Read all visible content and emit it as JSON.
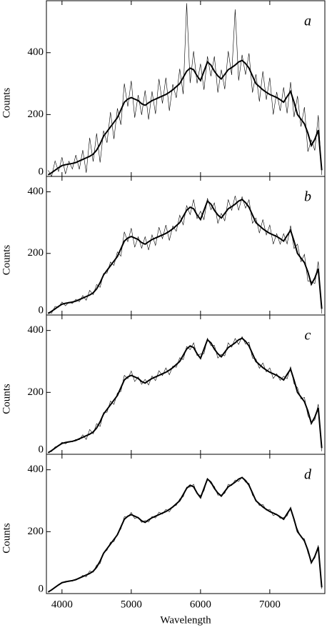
{
  "chart_data": [
    {
      "type": "line",
      "label": "a",
      "ylabel": "Counts",
      "xlim": [
        3775,
        7795
      ],
      "ylim": [
        0,
        568
      ],
      "yticks": [
        0,
        200,
        400
      ],
      "xticks": [
        4000,
        5000,
        6000,
        7000
      ],
      "x": [
        3800,
        3850,
        3900,
        3950,
        4000,
        4050,
        4100,
        4150,
        4200,
        4250,
        4300,
        4350,
        4400,
        4450,
        4500,
        4550,
        4600,
        4650,
        4700,
        4750,
        4800,
        4850,
        4900,
        4950,
        5000,
        5050,
        5100,
        5150,
        5200,
        5250,
        5300,
        5350,
        5400,
        5450,
        5500,
        5550,
        5600,
        5650,
        5700,
        5750,
        5800,
        5850,
        5900,
        5950,
        6000,
        6050,
        6100,
        6150,
        6200,
        6250,
        6300,
        6350,
        6400,
        6450,
        6500,
        6550,
        6600,
        6650,
        6700,
        6750,
        6800,
        6850,
        6900,
        6950,
        7000,
        7050,
        7100,
        7150,
        7200,
        7250,
        7300,
        7350,
        7400,
        7450,
        7500,
        7550,
        7600,
        7650,
        7700,
        7750
      ],
      "series": [
        {
          "color": "#000000",
          "values": [
            20,
            0,
            50,
            16,
            62,
            8,
            49,
            24,
            69,
            23,
            85,
            12,
            125,
            48,
            139,
            45,
            148,
            109,
            208,
            121,
            220,
            167,
            300,
            226,
            309,
            190,
            263,
            199,
            278,
            184,
            275,
            202,
            315,
            236,
            319,
            212,
            298,
            254,
            348,
            266,
            560,
            302,
            405,
            301,
            364,
            280,
            388,
            324,
            388,
            271,
            345,
            282,
            405,
            328,
            540,
            310,
            393,
            329,
            398,
            271,
            330,
            242,
            340,
            248,
            319,
            200,
            273,
            212,
            288,
            204,
            305,
            192,
            260,
            161,
            224,
            80,
            118,
            84,
            198,
            5
          ]
        },
        {
          "color": "#000000",
          "values": [
            5,
            12,
            20,
            28,
            35,
            38,
            40,
            42,
            45,
            50,
            55,
            60,
            65,
            72,
            85,
            105,
            130,
            145,
            160,
            175,
            190,
            215,
            240,
            250,
            255,
            250,
            245,
            235,
            230,
            238,
            245,
            250,
            255,
            260,
            265,
            272,
            280,
            290,
            300,
            320,
            340,
            350,
            345,
            325,
            310,
            340,
            370,
            360,
            340,
            325,
            315,
            330,
            345,
            352,
            360,
            370,
            375,
            365,
            350,
            325,
            300,
            290,
            280,
            272,
            265,
            260,
            255,
            248,
            240,
            258,
            275,
            240,
            200,
            185,
            170,
            140,
            100,
            120,
            150,
            20
          ]
        }
      ]
    },
    {
      "type": "line",
      "label": "b",
      "ylabel": "Counts",
      "xlim": [
        3775,
        7795
      ],
      "ylim": [
        0,
        450
      ],
      "yticks": [
        0,
        200,
        400
      ],
      "xticks": [
        4000,
        5000,
        6000,
        7000
      ],
      "x": [
        3800,
        3850,
        3900,
        3950,
        4000,
        4050,
        4100,
        4150,
        4200,
        4250,
        4300,
        4350,
        4400,
        4450,
        4500,
        4550,
        4600,
        4650,
        4700,
        4750,
        4800,
        4850,
        4900,
        4950,
        5000,
        5050,
        5100,
        5150,
        5200,
        5250,
        5300,
        5350,
        5400,
        5450,
        5500,
        5550,
        5600,
        5650,
        5700,
        5750,
        5800,
        5850,
        5900,
        5950,
        6000,
        6050,
        6100,
        6150,
        6200,
        6250,
        6300,
        6350,
        6400,
        6450,
        6500,
        6550,
        6600,
        6650,
        6700,
        6750,
        6800,
        6850,
        6900,
        6950,
        7000,
        7050,
        7100,
        7150,
        7200,
        7250,
        7300,
        7350,
        7400,
        7450,
        7500,
        7550,
        7600,
        7650,
        7700,
        7750
      ],
      "series": [
        {
          "color": "#000000",
          "values": [
            9,
            6,
            28,
            25,
            42,
            30,
            42,
            37,
            51,
            43,
            63,
            48,
            80,
            66,
            99,
            90,
            135,
            136,
            172,
            161,
            205,
            191,
            270,
            238,
            282,
            220,
            254,
            217,
            254,
            211,
            260,
            226,
            285,
            248,
            292,
            242,
            289,
            272,
            324,
            293,
            355,
            326,
            375,
            313,
            337,
            310,
            379,
            342,
            364,
            298,
            330,
            306,
            375,
            340,
            387,
            340,
            384,
            347,
            374,
            298,
            315,
            266,
            310,
            260,
            292,
            230,
            264,
            230,
            264,
            231,
            290,
            216,
            230,
            173,
            197,
            110,
            109,
            102,
            174,
            5
          ]
        },
        {
          "color": "#000000",
          "values": [
            5,
            12,
            20,
            28,
            35,
            38,
            40,
            42,
            45,
            50,
            55,
            60,
            65,
            72,
            85,
            105,
            130,
            145,
            160,
            175,
            190,
            215,
            240,
            250,
            255,
            250,
            245,
            235,
            230,
            238,
            245,
            250,
            255,
            260,
            265,
            272,
            280,
            290,
            300,
            320,
            340,
            350,
            345,
            325,
            310,
            340,
            370,
            360,
            340,
            325,
            315,
            330,
            345,
            352,
            360,
            370,
            375,
            365,
            350,
            325,
            300,
            290,
            280,
            272,
            265,
            260,
            255,
            248,
            240,
            258,
            275,
            240,
            200,
            185,
            170,
            140,
            100,
            120,
            150,
            20
          ]
        }
      ]
    },
    {
      "type": "line",
      "label": "c",
      "ylabel": "Counts",
      "xlim": [
        3775,
        7795
      ],
      "ylim": [
        0,
        450
      ],
      "yticks": [
        0,
        200,
        400
      ],
      "xticks": [
        4000,
        5000,
        6000,
        7000
      ],
      "x": [
        3800,
        3850,
        3900,
        3950,
        4000,
        4050,
        4100,
        4150,
        4200,
        4250,
        4300,
        4350,
        4400,
        4450,
        4500,
        4550,
        4600,
        4650,
        4700,
        4750,
        4800,
        4850,
        4900,
        4950,
        5000,
        5050,
        5100,
        5150,
        5200,
        5250,
        5300,
        5350,
        5400,
        5450,
        5500,
        5550,
        5600,
        5650,
        5700,
        5750,
        5800,
        5850,
        5900,
        5950,
        6000,
        6050,
        6100,
        6150,
        6200,
        6250,
        6300,
        6350,
        6400,
        6450,
        6500,
        6550,
        6600,
        6650,
        6700,
        6750,
        6800,
        6850,
        6900,
        6950,
        7000,
        7050,
        7100,
        7150,
        7200,
        7250,
        7300,
        7350,
        7400,
        7450,
        7500,
        7550,
        7600,
        7650,
        7700,
        7750
      ],
      "series": [
        {
          "color": "#000000",
          "values": [
            7,
            9,
            24,
            27,
            39,
            34,
            41,
            40,
            48,
            47,
            63,
            48,
            80,
            66,
            99,
            90,
            135,
            136,
            172,
            161,
            198,
            203,
            255,
            244,
            269,
            235,
            250,
            226,
            242,
            224,
            253,
            238,
            270,
            254,
            279,
            257,
            285,
            281,
            312,
            306,
            348,
            338,
            360,
            319,
            324,
            325,
            375,
            351,
            352,
            311,
            323,
            318,
            360,
            346,
            374,
            355,
            380,
            356,
            362,
            311,
            308,
            278,
            295,
            266,
            279,
            245,
            260,
            239,
            252,
            244,
            283,
            228,
            215,
            179,
            184,
            125,
            105,
            111,
            162,
            10
          ]
        },
        {
          "color": "#000000",
          "values": [
            5,
            12,
            20,
            28,
            35,
            38,
            40,
            42,
            45,
            50,
            55,
            60,
            65,
            72,
            85,
            105,
            130,
            145,
            160,
            175,
            190,
            215,
            240,
            250,
            255,
            250,
            245,
            235,
            230,
            238,
            245,
            250,
            255,
            260,
            265,
            272,
            280,
            290,
            300,
            320,
            340,
            350,
            345,
            325,
            310,
            340,
            370,
            360,
            340,
            325,
            315,
            330,
            345,
            352,
            360,
            370,
            375,
            365,
            350,
            325,
            300,
            290,
            280,
            272,
            265,
            260,
            255,
            248,
            240,
            258,
            275,
            240,
            200,
            185,
            170,
            140,
            100,
            120,
            150,
            20
          ]
        }
      ]
    },
    {
      "type": "line",
      "label": "d",
      "ylabel": "Counts",
      "xlabel": "Wavelength",
      "xlim": [
        3775,
        7795
      ],
      "ylim": [
        0,
        450
      ],
      "yticks": [
        0,
        200,
        400
      ],
      "xticks": [
        4000,
        5000,
        6000,
        7000
      ],
      "x": [
        3800,
        3850,
        3900,
        3950,
        4000,
        4050,
        4100,
        4150,
        4200,
        4250,
        4300,
        4350,
        4400,
        4450,
        4500,
        4550,
        4600,
        4650,
        4700,
        4750,
        4800,
        4850,
        4900,
        4950,
        5000,
        5050,
        5100,
        5150,
        5200,
        5250,
        5300,
        5350,
        5400,
        5450,
        5500,
        5550,
        5600,
        5650,
        5700,
        5750,
        5800,
        5850,
        5900,
        5950,
        6000,
        6050,
        6100,
        6150,
        6200,
        6250,
        6300,
        6350,
        6400,
        6450,
        6500,
        6550,
        6600,
        6650,
        6700,
        6750,
        6800,
        6850,
        6900,
        6950,
        7000,
        7050,
        7100,
        7150,
        7200,
        7250,
        7300,
        7350,
        7400,
        7450,
        7500,
        7550,
        7600,
        7650,
        7700,
        7750
      ],
      "series": [
        {
          "color": "#000000",
          "values": [
            6,
            10,
            22,
            27,
            37,
            36,
            41,
            40,
            47,
            48,
            59,
            54,
            73,
            69,
            92,
            97,
            132,
            140,
            166,
            168,
            194,
            209,
            248,
            247,
            262,
            242,
            247,
            230,
            236,
            231,
            249,
            244,
            263,
            257,
            272,
            264,
            282,
            285,
            306,
            313,
            344,
            344,
            353,
            322,
            317,
            332,
            372,
            355,
            346,
            318,
            319,
            324,
            353,
            349,
            367,
            362,
            377,
            360,
            356,
            318,
            304,
            284,
            288,
            269,
            272,
            252,
            257,
            243,
            246,
            251,
            279,
            234,
            208,
            182,
            177,
            132,
            102,
            115,
            156,
            15
          ]
        },
        {
          "color": "#000000",
          "values": [
            5,
            12,
            20,
            28,
            35,
            38,
            40,
            42,
            45,
            50,
            55,
            60,
            65,
            72,
            85,
            105,
            130,
            145,
            160,
            175,
            190,
            215,
            240,
            250,
            255,
            250,
            245,
            235,
            230,
            238,
            245,
            250,
            255,
            260,
            265,
            272,
            280,
            290,
            300,
            320,
            340,
            350,
            345,
            325,
            310,
            340,
            370,
            360,
            340,
            325,
            315,
            330,
            345,
            352,
            360,
            370,
            375,
            365,
            350,
            325,
            300,
            290,
            280,
            272,
            265,
            260,
            255,
            248,
            240,
            258,
            275,
            240,
            200,
            185,
            170,
            140,
            100,
            120,
            150,
            20
          ]
        }
      ]
    }
  ]
}
